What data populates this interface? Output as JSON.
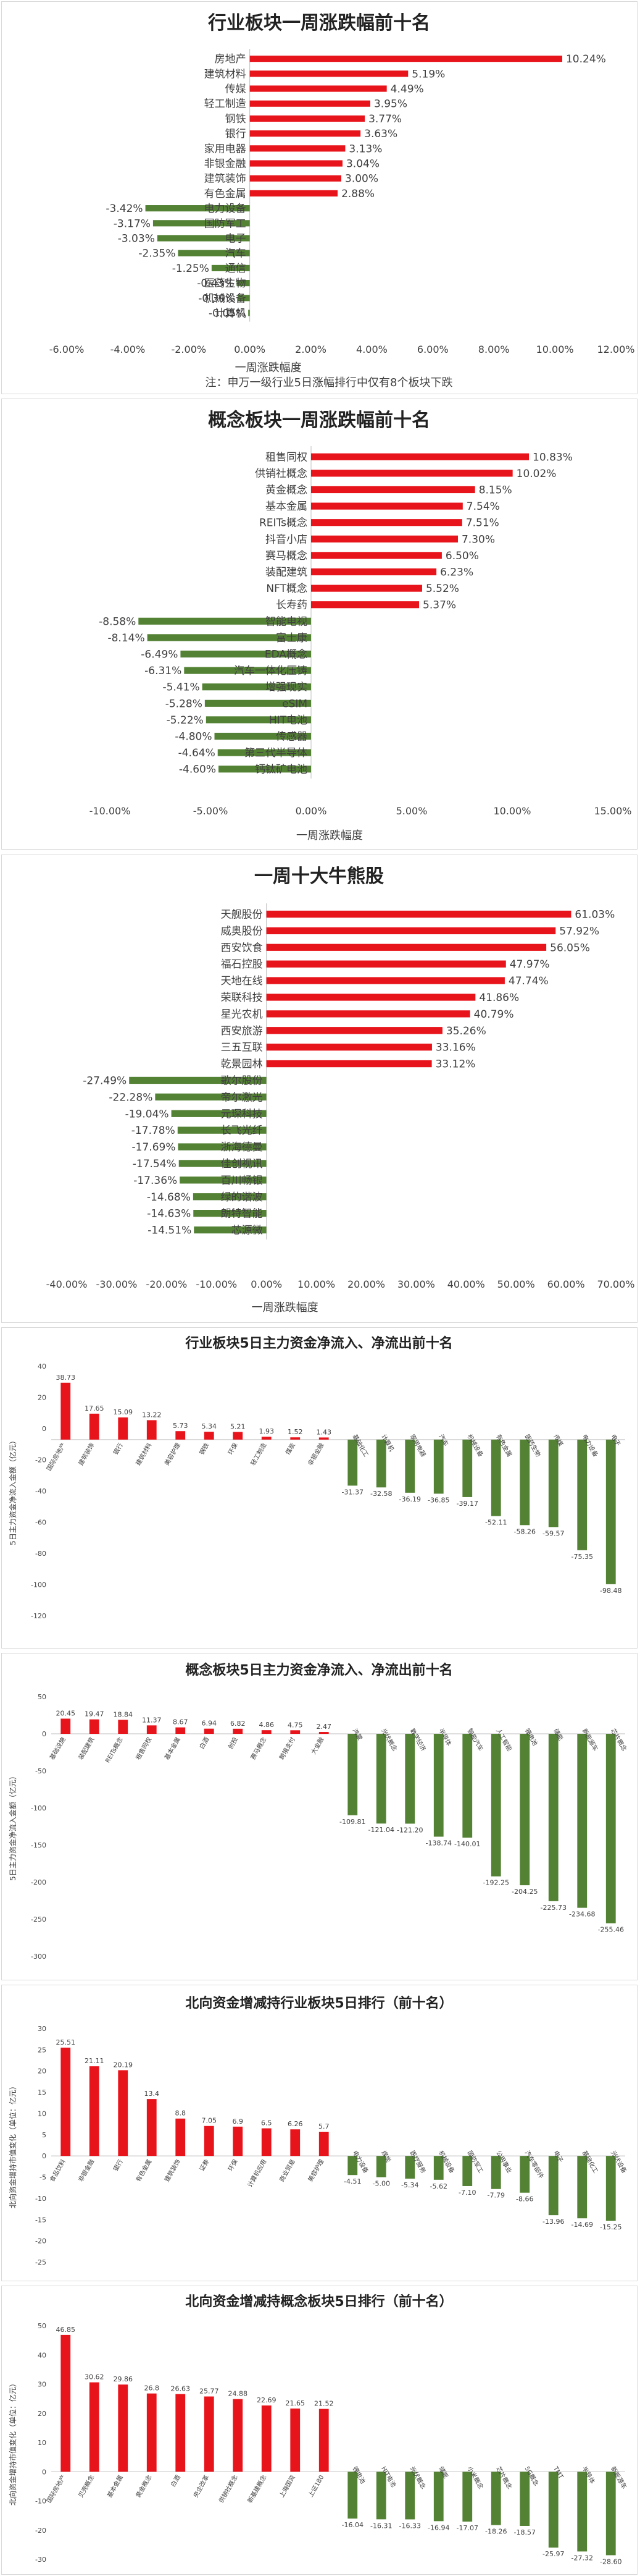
{
  "charts": [
    {
      "type": "bar",
      "orientation": "horizontal",
      "title": "行业板块一周涨跌幅前十名",
      "xlabel": "一周涨跌幅度",
      "note": "注：申万一级行业5日涨幅排行中仅有8个板块下跌",
      "xlim": [
        -6,
        12
      ],
      "ticks": [
        "-6.00%",
        "-4.00%",
        "-2.00%",
        "0.00%",
        "2.00%",
        "4.00%",
        "6.00%",
        "8.00%",
        "10.00%",
        "12.00%"
      ],
      "categories": [
        "房地产",
        "建筑材料",
        "传媒",
        "轻工制造",
        "钢铁",
        "银行",
        "家用电器",
        "非银金融",
        "建筑装饰",
        "有色金属",
        "电力设备",
        "国防军工",
        "电子",
        "汽车",
        "通信",
        "医药生物",
        "机械设备",
        "计算机"
      ],
      "values": [
        10.24,
        5.19,
        4.49,
        3.95,
        3.77,
        3.63,
        3.13,
        3.04,
        3.0,
        2.88,
        -3.42,
        -3.17,
        -3.03,
        -2.35,
        -1.25,
        -0.43,
        -0.39,
        -0.05
      ],
      "labels": [
        "10.24%",
        "5.19%",
        "4.49%",
        "3.95%",
        "3.77%",
        "3.63%",
        "3.13%",
        "3.04%",
        "3.00%",
        "2.88%",
        "-3.42%",
        "-3.17%",
        "-3.03%",
        "-2.35%",
        "-1.25%",
        "-0.43%",
        "-0.39%",
        "-0.05%"
      ]
    },
    {
      "type": "bar",
      "orientation": "horizontal",
      "title": "概念板块一周涨跌幅前十名",
      "xlabel": "一周涨跌幅度",
      "xlim": [
        -10,
        15
      ],
      "ticks": [
        "-10.00%",
        "-5.00%",
        "0.00%",
        "5.00%",
        "10.00%",
        "15.00%"
      ],
      "categories": [
        "租售同权",
        "供销社概念",
        "黄金概念",
        "基本金属",
        "REITs概念",
        "抖音小店",
        "赛马概念",
        "装配建筑",
        "NFT概念",
        "长寿药",
        "智能电视",
        "富士康",
        "EDA概念",
        "汽车一体化压铸",
        "增强现实",
        "eSIM",
        "HIT电池",
        "传感器",
        "第三代半导体",
        "钙钛矿电池"
      ],
      "values": [
        10.83,
        10.02,
        8.15,
        7.54,
        7.51,
        7.3,
        6.5,
        6.23,
        5.52,
        5.37,
        -8.58,
        -8.14,
        -6.49,
        -6.31,
        -5.41,
        -5.28,
        -5.22,
        -4.8,
        -4.64,
        -4.6
      ],
      "labels": [
        "10.83%",
        "10.02%",
        "8.15%",
        "7.54%",
        "7.51%",
        "7.30%",
        "6.50%",
        "6.23%",
        "5.52%",
        "5.37%",
        "-8.58%",
        "-8.14%",
        "-6.49%",
        "-6.31%",
        "-5.41%",
        "-5.28%",
        "-5.22%",
        "-4.80%",
        "-4.64%",
        "-4.60%"
      ]
    },
    {
      "type": "bar",
      "orientation": "horizontal",
      "title": "一周十大牛熊股",
      "xlabel": "一周涨跌幅度",
      "xlim": [
        -40,
        70
      ],
      "ticks": [
        "-40.00%",
        "-30.00%",
        "-20.00%",
        "-10.00%",
        "0.00%",
        "10.00%",
        "20.00%",
        "30.00%",
        "40.00%",
        "50.00%",
        "60.00%",
        "70.00%"
      ],
      "categories": [
        "天舰股份",
        "威奥股份",
        "西安饮食",
        "福石控股",
        "天地在线",
        "荣联科技",
        "星光农机",
        "西安旅游",
        "三五互联",
        "乾景园林",
        "歌尔股份",
        "帝尔激光",
        "元琛科技",
        "长飞光纤",
        "浙海德曼",
        "佳创视讯",
        "百川畅银",
        "绿的谐波",
        "朗特智能",
        "芯源微"
      ],
      "values": [
        61.03,
        57.92,
        56.05,
        47.97,
        47.74,
        41.86,
        40.79,
        35.26,
        33.16,
        33.12,
        -27.49,
        -22.28,
        -19.04,
        -17.78,
        -17.69,
        -17.54,
        -17.36,
        -14.68,
        -14.63,
        -14.51
      ],
      "labels": [
        "61.03%",
        "57.92%",
        "56.05%",
        "47.97%",
        "47.74%",
        "41.86%",
        "40.79%",
        "35.26%",
        "33.16%",
        "33.12%",
        "-27.49%",
        "-22.28%",
        "-19.04%",
        "-17.78%",
        "-17.69%",
        "-17.54%",
        "-17.36%",
        "-14.68%",
        "-14.63%",
        "-14.51%"
      ]
    },
    {
      "type": "bar",
      "orientation": "vertical",
      "title": "行业板块5日主力资金净流入、净流出前十名",
      "ylabel": "5日主力资金净流入金额（亿元）",
      "ylim": [
        -120,
        50
      ],
      "yticks": [
        "-120",
        "-100",
        "-80",
        "-60",
        "-40",
        "-20",
        "0",
        "20",
        "40"
      ],
      "categories": [
        "国际房地产",
        "建筑装饰",
        "银行",
        "建筑材料",
        "美容护理",
        "钢铁",
        "环保",
        "轻工制造",
        "煤炭",
        "非银金融",
        "基础化工",
        "计算机",
        "家用电器",
        "汽车",
        "机械设备",
        "有色金属",
        "医药生物",
        "传媒",
        "电力设备",
        "电子"
      ],
      "values": [
        38.73,
        17.65,
        15.09,
        13.22,
        5.73,
        5.34,
        5.21,
        1.93,
        1.52,
        1.43,
        -31.37,
        -32.58,
        -36.19,
        -36.85,
        -39.17,
        -52.11,
        -58.26,
        -59.57,
        -75.35,
        -98.48
      ],
      "labels": [
        "38.73",
        "17.65",
        "15.09",
        "13.22",
        "5.73",
        "5.34",
        "5.21",
        "1.93",
        "1.52",
        "1.43",
        "-31.37",
        "-32.58",
        "-36.19",
        "-36.85",
        "-39.17",
        "-52.11",
        "-58.26",
        "-59.57",
        "-75.35",
        "-98.48"
      ]
    },
    {
      "type": "bar",
      "orientation": "vertical",
      "title": "概念板块5日主力资金净流入、净流出前十名",
      "ylabel": "5日主力资金净流入金额（亿元）",
      "ylim": [
        -300,
        50
      ],
      "yticks": [
        "-300",
        "-250",
        "-200",
        "-150",
        "-100",
        "-50",
        "0",
        "50"
      ],
      "categories": [
        "基础设施",
        "装配建筑",
        "REITs概念",
        "租售同权",
        "基本金属",
        "白酒",
        "创投",
        "赛马概念",
        "跨境支付",
        "大金融",
        "鸿蒙",
        "光伏概念",
        "数字经济",
        "半导体",
        "智能汽车",
        "人工智能",
        "锂电池",
        "储能",
        "新能源车",
        "芯片概念"
      ],
      "values": [
        20.45,
        19.47,
        18.84,
        11.37,
        8.67,
        6.94,
        6.82,
        4.86,
        4.75,
        2.47,
        -109.81,
        -121.04,
        -121.2,
        -138.74,
        -140.01,
        -192.25,
        -204.25,
        -225.73,
        -234.68,
        -255.46
      ],
      "labels": [
        "20.45",
        "19.47",
        "18.84",
        "11.37",
        "8.67",
        "6.94",
        "6.82",
        "4.86",
        "4.75",
        "2.47",
        "-109.81",
        "-121.04",
        "-121.20",
        "-138.74",
        "-140.01",
        "-192.25",
        "-204.25",
        "-225.73",
        "-234.68",
        "-255.46"
      ]
    },
    {
      "type": "bar",
      "orientation": "vertical",
      "title": "北向资金增减持行业板块5日排行（前十名）",
      "ylabel": "北向资金增持市值变化（单位：亿元）",
      "ylim": [
        -25,
        30
      ],
      "yticks": [
        "-25",
        "-20",
        "-15",
        "-10",
        "-5",
        "0",
        "5",
        "10",
        "15",
        "20",
        "25",
        "30"
      ],
      "categories": [
        "食品饮料",
        "非银金融",
        "银行",
        "有色金属",
        "建筑装饰",
        "证券",
        "环保",
        "计算机应用",
        "商业贸易",
        "美容护理",
        "电力设备",
        "煤炭",
        "医疗服务",
        "机械设备",
        "国防军工",
        "公用事业",
        "汽车零部件",
        "电子",
        "基础化工",
        "光伏设备"
      ],
      "values": [
        25.51,
        21.11,
        20.19,
        13.4,
        8.8,
        7.05,
        6.9,
        6.5,
        6.26,
        5.7,
        -4.51,
        -5.0,
        -5.34,
        -5.62,
        -7.1,
        -7.79,
        -8.66,
        -13.96,
        -14.69,
        -15.25
      ],
      "labels": [
        "25.51",
        "21.11",
        "20.19",
        "13.4",
        "8.8",
        "7.05",
        "6.9",
        "6.5",
        "6.26",
        "5.7",
        "-4.51",
        "-5.00",
        "-5.34",
        "-5.62",
        "-7.10",
        "-7.79",
        "-8.66",
        "-13.96",
        "-14.69",
        "-15.25"
      ]
    },
    {
      "type": "bar",
      "orientation": "vertical",
      "title": "北向资金增减持概念板块5日排行（前十名）",
      "ylabel": "北向资金增持市值变化（单位：亿元）",
      "ylim": [
        -30,
        50
      ],
      "yticks": [
        "-30",
        "-20",
        "-10",
        "0",
        "10",
        "20",
        "30",
        "40",
        "50"
      ],
      "categories": [
        "国际房地产",
        "贝壳概念",
        "基本金属",
        "黄金概念",
        "白酒",
        "央企改革",
        "供销社概念",
        "新基建概念",
        "上海国资",
        "上证180",
        "锂电池",
        "HIT电池",
        "光伏概念",
        "储能",
        "小米概念",
        "芯片概念",
        "5G概念",
        "TMT",
        "半导体",
        "新能源车"
      ],
      "values": [
        46.85,
        30.62,
        29.86,
        26.8,
        26.63,
        25.77,
        24.88,
        22.69,
        21.65,
        21.52,
        -16.04,
        -16.31,
        -16.33,
        -16.94,
        -17.07,
        -18.26,
        -18.57,
        -25.97,
        -27.32,
        -28.6
      ],
      "labels": [
        "46.85",
        "30.62",
        "29.86",
        "26.8",
        "26.63",
        "25.77",
        "24.88",
        "22.69",
        "21.65",
        "21.52",
        "-16.04",
        "-16.31",
        "-16.33",
        "-16.94",
        "-17.07",
        "-18.26",
        "-18.57",
        "-25.97",
        "-27.32",
        "-28.60"
      ]
    }
  ],
  "colors": {
    "up": "#e8141b",
    "down": "#548235",
    "axis": "#bfbfbf",
    "text": "#404040"
  }
}
